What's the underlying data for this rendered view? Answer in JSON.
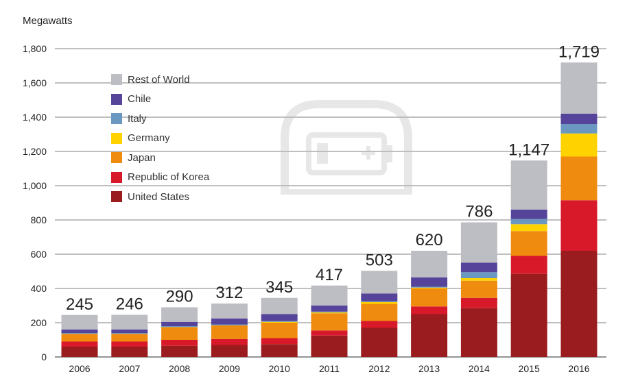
{
  "chart_data": {
    "type": "bar",
    "stacked": true,
    "ylabel": "Megawatts",
    "ylim": [
      0,
      1800
    ],
    "yticks": [
      0,
      200,
      400,
      600,
      800,
      1000,
      1200,
      1400,
      1600,
      1800
    ],
    "ytick_labels": [
      "0",
      "200",
      "400",
      "600",
      "800",
      "1,000",
      "1,200",
      "1,400",
      "1,600",
      "1,800"
    ],
    "grid": true,
    "legend_position": "top-left",
    "categories": [
      "2006",
      "2007",
      "2008",
      "2009",
      "2010",
      "2011",
      "2012",
      "2013",
      "2014",
      "2015",
      "2016"
    ],
    "totals": [
      245,
      246,
      290,
      312,
      345,
      417,
      503,
      620,
      786,
      1147,
      1719
    ],
    "total_labels": [
      "245",
      "246",
      "290",
      "312",
      "345",
      "417",
      "503",
      "620",
      "786",
      "1,147",
      "1,719"
    ],
    "series": [
      {
        "name": "United States",
        "color": "#9b1c1f",
        "values": [
          60,
          60,
          65,
          70,
          75,
          125,
          170,
          250,
          285,
          485,
          620
        ]
      },
      {
        "name": "Republic of Korea",
        "color": "#d7192a",
        "values": [
          30,
          30,
          35,
          35,
          35,
          30,
          40,
          45,
          60,
          105,
          295
        ]
      },
      {
        "name": "Japan",
        "color": "#ef8c0f",
        "values": [
          45,
          45,
          75,
          80,
          90,
          100,
          100,
          105,
          100,
          145,
          255
        ]
      },
      {
        "name": "Germany",
        "color": "#ffd200",
        "values": [
          0,
          0,
          0,
          0,
          5,
          5,
          10,
          5,
          15,
          40,
          135
        ]
      },
      {
        "name": "Italy",
        "color": "#6a98c0",
        "values": [
          5,
          5,
          5,
          5,
          5,
          5,
          5,
          5,
          35,
          30,
          55
        ]
      },
      {
        "name": "Chile",
        "color": "#56449a",
        "values": [
          20,
          20,
          25,
          35,
          40,
          35,
          45,
          55,
          55,
          55,
          60
        ]
      },
      {
        "name": "Rest of World",
        "color": "#bdbdc4",
        "values": [
          85,
          86,
          85,
          87,
          95,
          117,
          133,
          155,
          236,
          287,
          299
        ]
      }
    ],
    "legend_order": [
      "Rest of World",
      "Chile",
      "Italy",
      "Germany",
      "Japan",
      "Republic of Korea",
      "United States"
    ]
  },
  "colors": {
    "gridline": "#555555",
    "axis_text": "#222222",
    "watermark": "#c8c8c8"
  },
  "watermark_icon": "battery-icon"
}
